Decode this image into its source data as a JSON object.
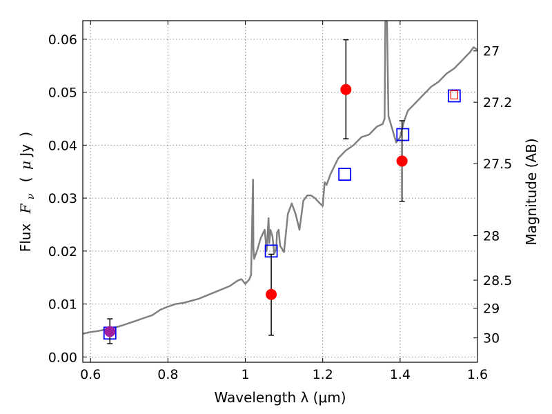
{
  "chart_data": {
    "type": "scatter",
    "xlabel": "Wavelength  λ (μm)",
    "ylabel": "Flux  F_ν  ( μJy )",
    "ylabel_parts": [
      "Flux",
      "F",
      "ν",
      "(",
      "μ",
      "Jy",
      ")"
    ],
    "y2label": "Magnitude (AB)",
    "xlim": [
      0.58,
      1.6
    ],
    "ylim": [
      -0.001,
      0.0635
    ],
    "grid": true,
    "x_ticks": [
      0.6,
      0.8,
      1.0,
      1.2,
      1.4,
      1.6
    ],
    "x_tick_labels": [
      "0.6",
      "0.8",
      "1",
      "1.2",
      "1.4",
      "1.6"
    ],
    "y_ticks": [
      0.0,
      0.01,
      0.02,
      0.03,
      0.04,
      0.05,
      0.06
    ],
    "y_tick_labels": [
      "0.00",
      "0.01",
      "0.02",
      "0.03",
      "0.04",
      "0.05",
      "0.06"
    ],
    "y2_ticks": [
      {
        "label": "27",
        "flux": 0.0578
      },
      {
        "label": "27.2",
        "flux": 0.0481
      },
      {
        "label": "27.5",
        "flux": 0.0365
      },
      {
        "label": "28",
        "flux": 0.0229
      },
      {
        "label": "28.5",
        "flux": 0.0145
      },
      {
        "label": "29",
        "flux": 0.0092
      },
      {
        "label": "30",
        "flux": 0.0036
      }
    ],
    "colors": {
      "spectrum": "#808080",
      "model": "#0000ff",
      "observed": "#ff0000",
      "observed_overlap": "#a020a0",
      "small_marker": "#ff0000",
      "errorbar": "#000000",
      "grid": "#888888"
    },
    "spectrum": {
      "x": [
        0.58,
        0.6,
        0.62,
        0.64,
        0.66,
        0.68,
        0.7,
        0.72,
        0.74,
        0.76,
        0.78,
        0.8,
        0.82,
        0.84,
        0.86,
        0.88,
        0.9,
        0.92,
        0.94,
        0.96,
        0.98,
        0.99,
        1.0,
        1.01,
        1.015,
        1.02,
        1.021,
        1.023,
        1.026,
        1.03,
        1.04,
        1.05,
        1.055,
        1.06,
        1.062,
        1.065,
        1.07,
        1.075,
        1.08,
        1.082,
        1.086,
        1.09,
        1.1,
        1.11,
        1.12,
        1.13,
        1.14,
        1.15,
        1.16,
        1.17,
        1.18,
        1.19,
        1.2,
        1.205,
        1.21,
        1.22,
        1.24,
        1.26,
        1.28,
        1.3,
        1.32,
        1.34,
        1.355,
        1.36,
        1.362,
        1.366,
        1.37,
        1.38,
        1.39,
        1.4,
        1.41,
        1.42,
        1.44,
        1.46,
        1.48,
        1.5,
        1.52,
        1.54,
        1.56,
        1.58,
        1.59,
        1.6
      ],
      "y": [
        0.0044,
        0.0047,
        0.0049,
        0.0052,
        0.0055,
        0.0059,
        0.0064,
        0.0069,
        0.0074,
        0.0079,
        0.0089,
        0.0095,
        0.01,
        0.0102,
        0.0106,
        0.011,
        0.0116,
        0.0122,
        0.0128,
        0.0134,
        0.0144,
        0.0147,
        0.0138,
        0.0146,
        0.0155,
        0.0335,
        0.0205,
        0.0185,
        0.0192,
        0.02,
        0.0225,
        0.024,
        0.02,
        0.0262,
        0.0215,
        0.024,
        0.0228,
        0.0195,
        0.0205,
        0.0235,
        0.024,
        0.021,
        0.0198,
        0.027,
        0.029,
        0.027,
        0.024,
        0.0295,
        0.0305,
        0.0305,
        0.03,
        0.0292,
        0.0285,
        0.033,
        0.0325,
        0.0345,
        0.0375,
        0.039,
        0.04,
        0.0415,
        0.042,
        0.0435,
        0.044,
        0.045,
        0.064,
        0.064,
        0.0455,
        0.043,
        0.0405,
        0.0415,
        0.0445,
        0.0465,
        0.048,
        0.0495,
        0.051,
        0.052,
        0.0535,
        0.0545,
        0.056,
        0.0575,
        0.0585,
        0.058
      ]
    },
    "observed_points": [
      {
        "x": 0.65,
        "y": 0.0048,
        "yerr_low": 0.0023,
        "yerr_high": 0.0024,
        "color": "observed_overlap"
      },
      {
        "x": 1.067,
        "y": 0.0118,
        "yerr_low": 0.0077,
        "yerr_high": 0.0076,
        "color": "observed"
      },
      {
        "x": 1.26,
        "y": 0.0505,
        "yerr_low": 0.0093,
        "yerr_high": 0.0094,
        "color": "observed"
      },
      {
        "x": 1.405,
        "y": 0.037,
        "yerr_low": 0.0076,
        "yerr_high": 0.0076,
        "color": "observed"
      },
      {
        "x": 1.54,
        "y": 0.0495,
        "yerr_low": 0,
        "yerr_high": 0,
        "color": "small_marker",
        "small": true
      }
    ],
    "model_points": [
      {
        "x": 0.65,
        "y": 0.0045
      },
      {
        "x": 1.067,
        "y": 0.02
      },
      {
        "x": 1.257,
        "y": 0.0345
      },
      {
        "x": 1.407,
        "y": 0.042
      },
      {
        "x": 1.54,
        "y": 0.0493
      }
    ]
  }
}
